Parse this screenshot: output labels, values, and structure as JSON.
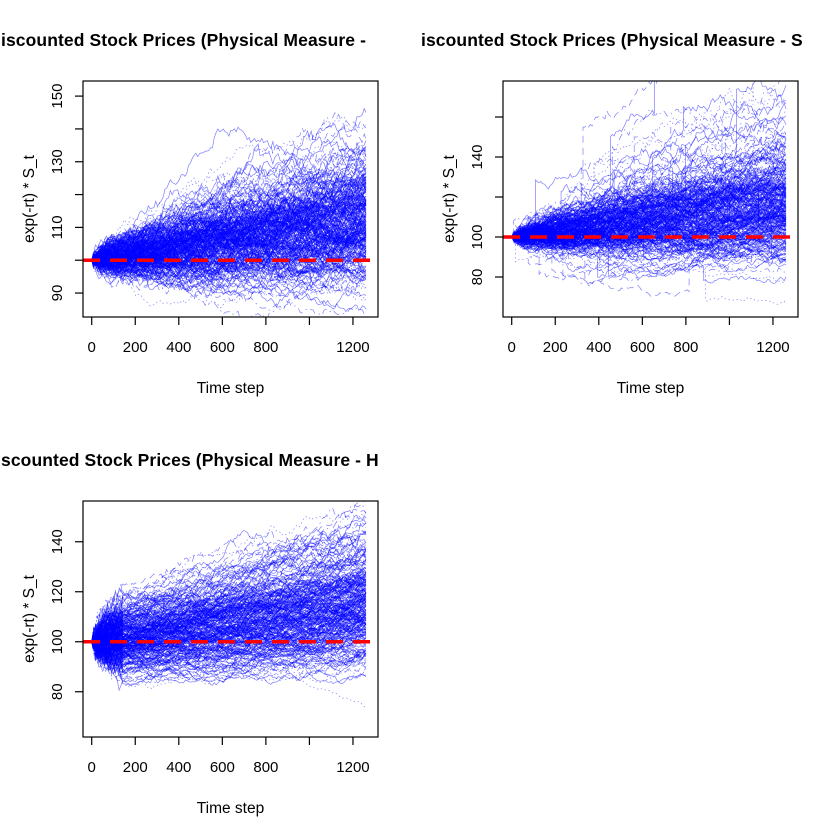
{
  "figure": {
    "background": "#ffffff",
    "layout_note": "2x2 panel grid, bottom-right panel empty",
    "path_color": "#0000ff",
    "ref_color": "#ff0000",
    "axis_color": "#000000"
  },
  "chart_data": [
    {
      "type": "line",
      "panel": "top-left",
      "title_visible": "iscounted Stock Prices (Physical Measure - ",
      "xlabel": "Time step",
      "ylabel": "exp(-rt) * S_t",
      "x_ticks": [
        0,
        200,
        400,
        600,
        800,
        1000,
        1200
      ],
      "x_tick_labels": [
        "0",
        "200",
        "400",
        "600",
        "800",
        "",
        "1200"
      ],
      "y_ticks": [
        90,
        100,
        110,
        120,
        130,
        140,
        150
      ],
      "y_tick_labels": [
        "90",
        "",
        "110",
        "",
        "130",
        "",
        "150"
      ],
      "xlim": [
        -40,
        1315
      ],
      "ylim": [
        82.7,
        154.6
      ],
      "ref_line": {
        "y": 100,
        "color": "#ff0000",
        "style": "dashed"
      },
      "path_color": "#0000ff",
      "paths": {
        "count": 320,
        "start": 100,
        "time_steps": 1260,
        "drift_total": 0.12,
        "vol_total": 0.1,
        "jumps": false,
        "early_vol_burst": false,
        "outlier_low_drift": -0.11,
        "final_range": [
          86,
          152
        ]
      }
    },
    {
      "type": "line",
      "panel": "top-right",
      "title_visible": "iscounted Stock Prices (Physical Measure - S",
      "xlabel": "Time step",
      "ylabel": "exp(-rt) * S_t",
      "x_ticks": [
        0,
        200,
        400,
        600,
        800,
        1000,
        1200
      ],
      "x_tick_labels": [
        "0",
        "200",
        "400",
        "600",
        "800",
        "",
        "1200"
      ],
      "y_ticks": [
        80,
        100,
        120,
        140,
        160
      ],
      "y_tick_labels": [
        "80",
        "100",
        "",
        "140",
        ""
      ],
      "xlim": [
        -40,
        1315
      ],
      "ylim": [
        60,
        178
      ],
      "ref_line": {
        "y": 100,
        "color": "#ff0000",
        "style": "dashed"
      },
      "path_color": "#0000ff",
      "paths": {
        "count": 320,
        "start": 100,
        "time_steps": 1260,
        "drift_total": 0.15,
        "vol_total": 0.12,
        "jumps": true,
        "early_vol_burst": false,
        "outlier_low_drift": -0.35,
        "final_range": [
          67,
          174
        ]
      }
    },
    {
      "type": "line",
      "panel": "bottom-left",
      "title_visible": "scounted Stock Prices (Physical Measure - H",
      "xlabel": "Time step",
      "ylabel": "exp(-rt) * S_t",
      "x_ticks": [
        0,
        200,
        400,
        600,
        800,
        1000,
        1200
      ],
      "x_tick_labels": [
        "0",
        "200",
        "400",
        "600",
        "800",
        "",
        "1200"
      ],
      "y_ticks": [
        80,
        100,
        120,
        140
      ],
      "y_tick_labels": [
        "80",
        "100",
        "120",
        "140"
      ],
      "xlim": [
        -40,
        1315
      ],
      "ylim": [
        61.9,
        156.3
      ],
      "ref_line": {
        "y": 100,
        "color": "#ff0000",
        "style": "dashed"
      },
      "path_color": "#0000ff",
      "paths": {
        "count": 320,
        "start": 100,
        "time_steps": 1260,
        "drift_total": 0.14,
        "vol_total": 0.1,
        "jumps": false,
        "early_vol_burst": true,
        "outlier_low_drift": -0.3,
        "final_range": [
          70,
          152
        ]
      }
    }
  ]
}
